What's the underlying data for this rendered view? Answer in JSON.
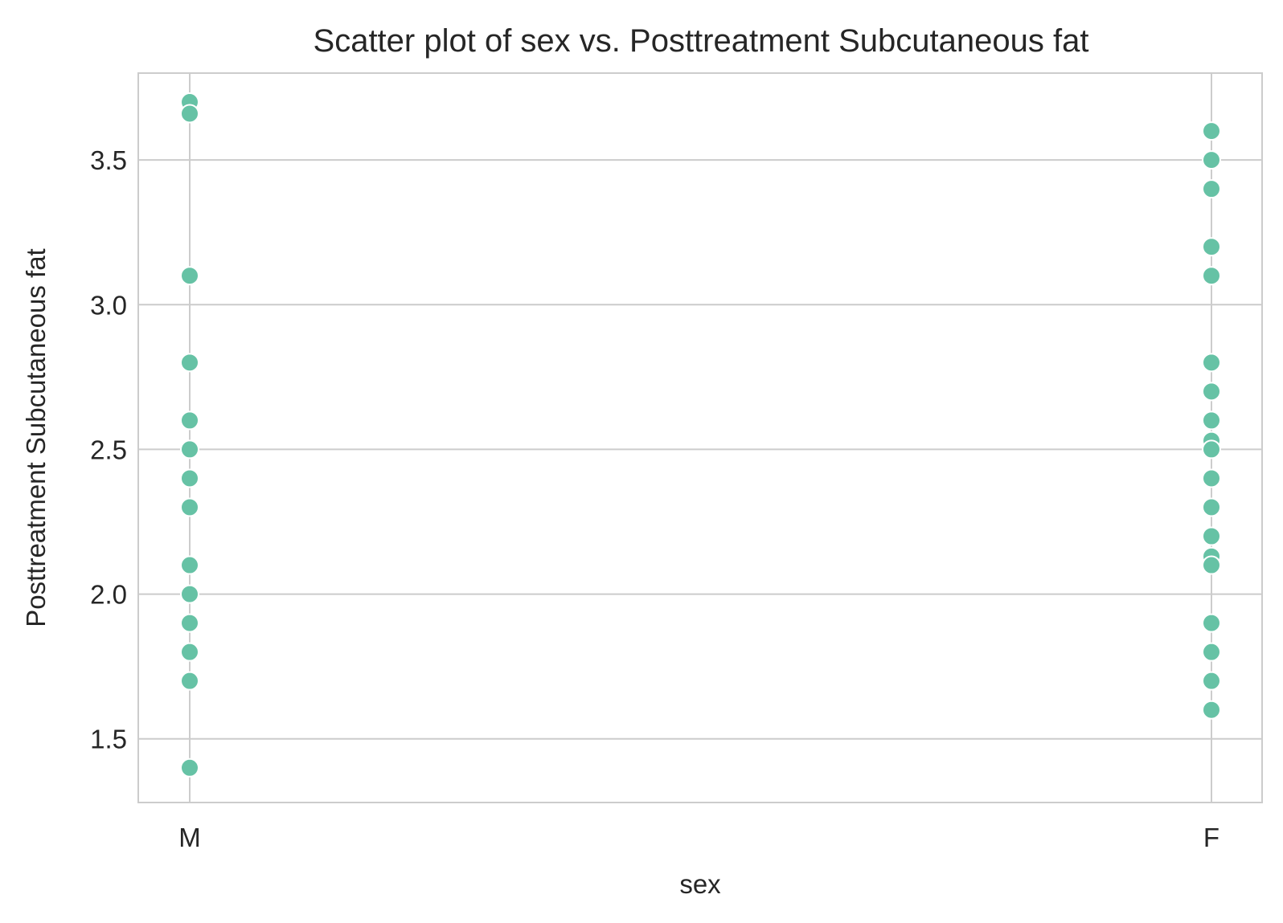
{
  "chart_data": {
    "type": "scatter",
    "title": "Scatter plot of sex vs. Posttreatment Subcutaneous fat",
    "xlabel": "sex",
    "ylabel": "Posttreatment Subcutaneous fat",
    "categories": [
      "M",
      "F"
    ],
    "ylim": [
      1.28,
      3.8
    ],
    "yticks": [
      1.5,
      2.0,
      2.5,
      3.0,
      3.5
    ],
    "ytick_labels": [
      "1.5",
      "2.0",
      "2.5",
      "3.0",
      "3.5"
    ],
    "grid": true,
    "point_color": "#66c2a5",
    "series": [
      {
        "category": "M",
        "values": [
          3.7,
          3.66,
          3.1,
          2.8,
          2.6,
          2.5,
          2.4,
          2.3,
          2.1,
          2.0,
          1.9,
          1.8,
          1.7,
          1.4
        ]
      },
      {
        "category": "F",
        "values": [
          3.6,
          3.5,
          3.4,
          3.2,
          3.1,
          2.8,
          2.7,
          2.6,
          2.53,
          2.5,
          2.4,
          2.3,
          2.2,
          2.13,
          2.1,
          1.9,
          1.8,
          1.7,
          1.6
        ]
      }
    ]
  }
}
